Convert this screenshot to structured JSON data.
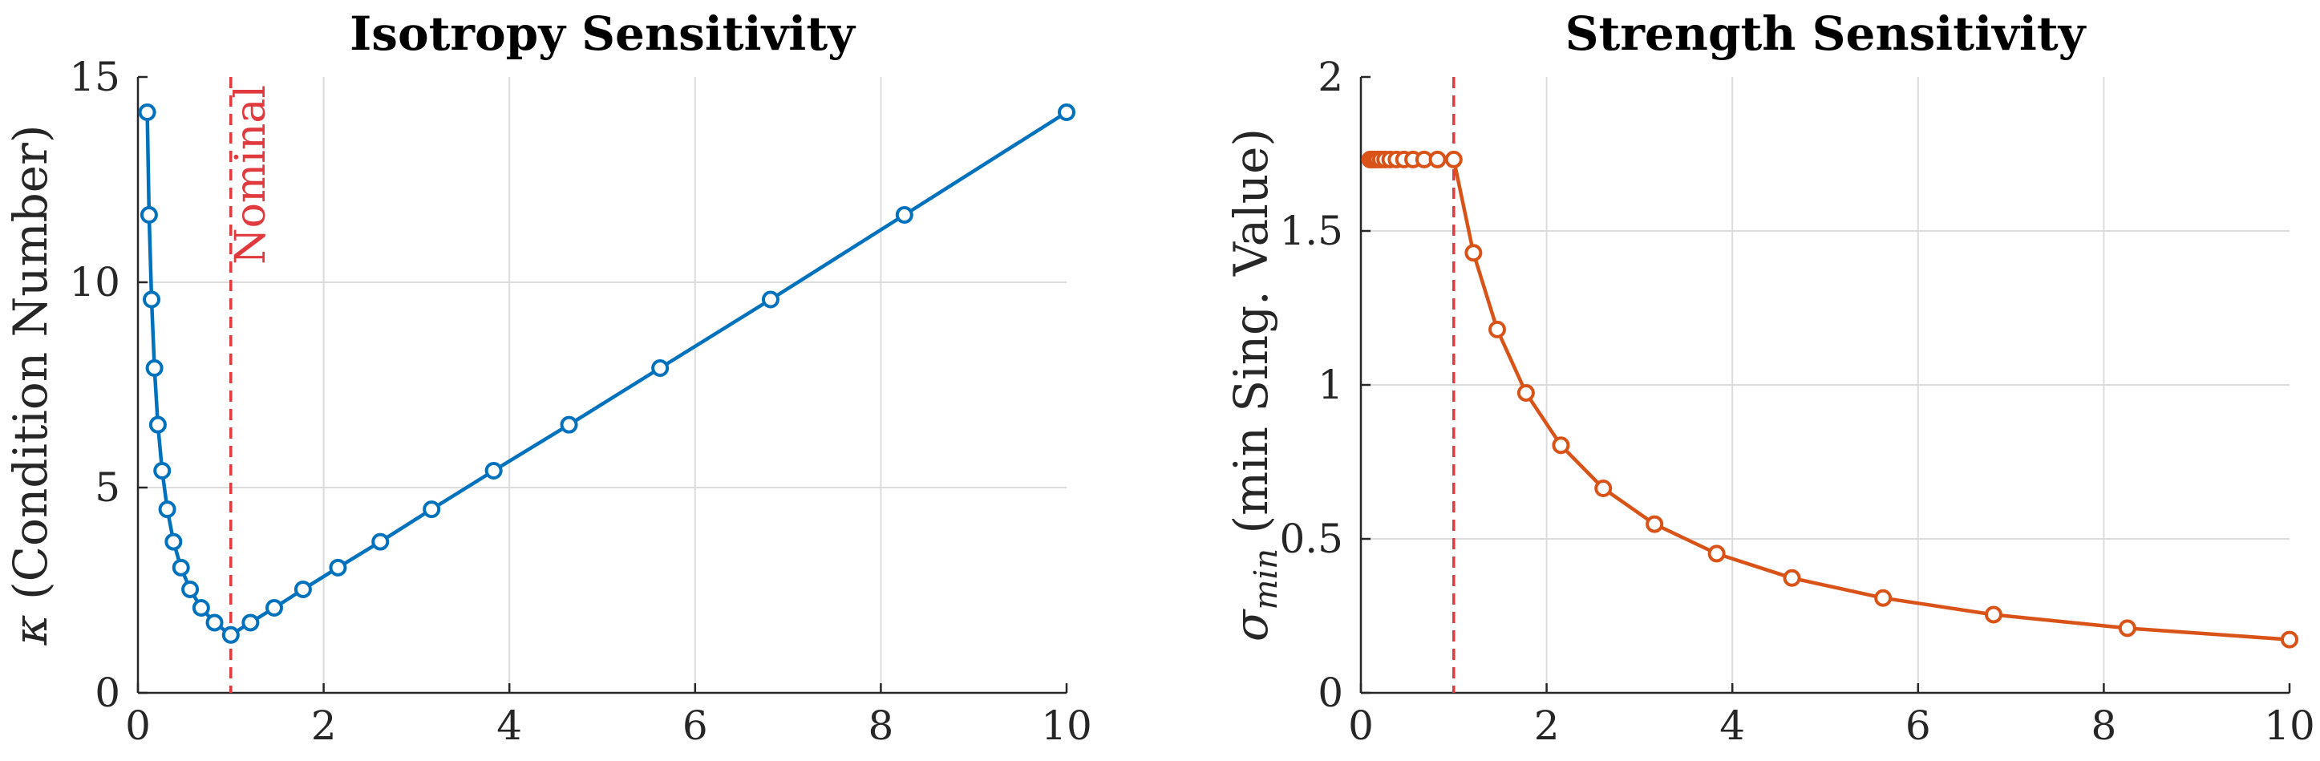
{
  "chart_data": [
    {
      "id": "isotropy",
      "type": "line",
      "title": "Isotropy Sensitivity",
      "xlabel": "",
      "ylabel_symbol": "κ",
      "ylabel_text": " (Condition Number)",
      "xlim": [
        0,
        10
      ],
      "ylim": [
        0,
        15
      ],
      "xticks": [
        0,
        2,
        4,
        6,
        8,
        10
      ],
      "yticks": [
        0,
        5,
        10,
        15
      ],
      "grid": true,
      "color": "#0072BD",
      "reference_line": {
        "x": 1,
        "label": "Nominal",
        "color": "#E0393E"
      },
      "series": [
        {
          "name": "kappa",
          "x": [
            0.1,
            0.12,
            0.147,
            0.178,
            0.215,
            0.261,
            0.316,
            0.383,
            0.464,
            0.562,
            0.681,
            0.825,
            1.0,
            1.212,
            1.468,
            1.778,
            2.154,
            2.61,
            3.162,
            3.831,
            4.642,
            5.623,
            6.813,
            8.254,
            10.0
          ],
          "y": [
            14.14,
            11.64,
            9.58,
            7.91,
            6.53,
            5.41,
            4.47,
            3.68,
            3.05,
            2.52,
            2.07,
            1.71,
            1.41,
            1.71,
            2.07,
            2.52,
            3.05,
            3.68,
            4.47,
            5.41,
            6.53,
            7.91,
            9.58,
            11.64,
            14.14
          ]
        }
      ]
    },
    {
      "id": "strength",
      "type": "line",
      "title": "Strength Sensitivity",
      "xlabel": "",
      "ylabel_symbol": "σ",
      "ylabel_sub": "min",
      "ylabel_text": " (min Sing. Value)",
      "xlim": [
        0,
        10
      ],
      "ylim": [
        0,
        2
      ],
      "xticks": [
        0,
        2,
        4,
        6,
        8,
        10
      ],
      "yticks": [
        0,
        0.5,
        1,
        1.5,
        2
      ],
      "grid": true,
      "color": "#D95319",
      "reference_line": {
        "x": 1,
        "label": "",
        "color": "#E0393E"
      },
      "series": [
        {
          "name": "sigma_min",
          "x": [
            0.1,
            0.12,
            0.147,
            0.178,
            0.215,
            0.261,
            0.316,
            0.383,
            0.464,
            0.562,
            0.681,
            0.825,
            1.0,
            1.212,
            1.468,
            1.778,
            2.154,
            2.61,
            3.162,
            3.831,
            4.642,
            5.623,
            6.813,
            8.254,
            10.0
          ],
          "y": [
            1.732,
            1.732,
            1.732,
            1.732,
            1.732,
            1.732,
            1.732,
            1.732,
            1.732,
            1.732,
            1.732,
            1.732,
            1.732,
            1.429,
            1.18,
            0.974,
            0.804,
            0.664,
            0.548,
            0.452,
            0.373,
            0.308,
            0.254,
            0.21,
            0.173
          ]
        }
      ]
    }
  ]
}
